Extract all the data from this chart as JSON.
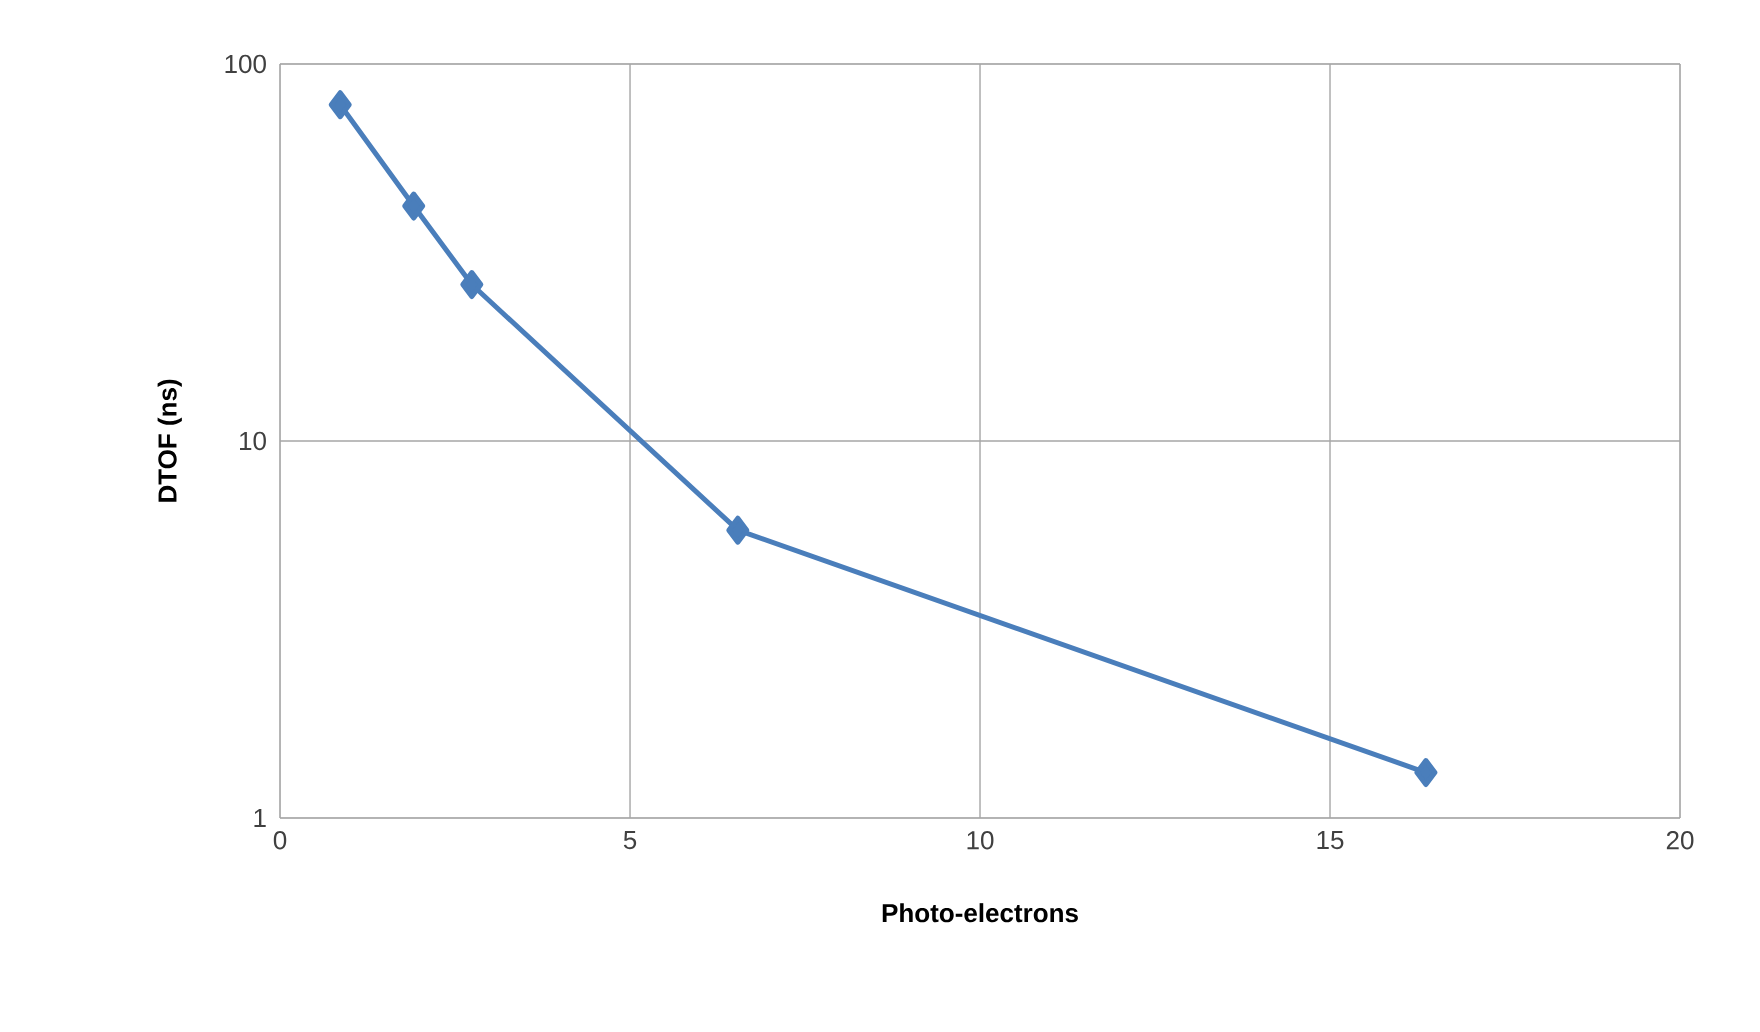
{
  "chart_data": {
    "type": "line",
    "xlabel": "Photo-electrons",
    "ylabel": "DTOF (ns)",
    "x": [
      0.86,
      1.91,
      2.74,
      6.54,
      16.37
    ],
    "series": [
      {
        "color": "#4a7ebb",
        "values": [
          78,
          42,
          26,
          5.8,
          1.32
        ]
      }
    ],
    "xlim": [
      0,
      20
    ],
    "xticks": [
      0,
      5,
      10,
      15,
      20
    ],
    "ylim": [
      1,
      100
    ],
    "yticks": [
      1,
      10,
      100
    ],
    "log": "y",
    "grid": true,
    "marker": "diamond",
    "line_style": "solid"
  }
}
